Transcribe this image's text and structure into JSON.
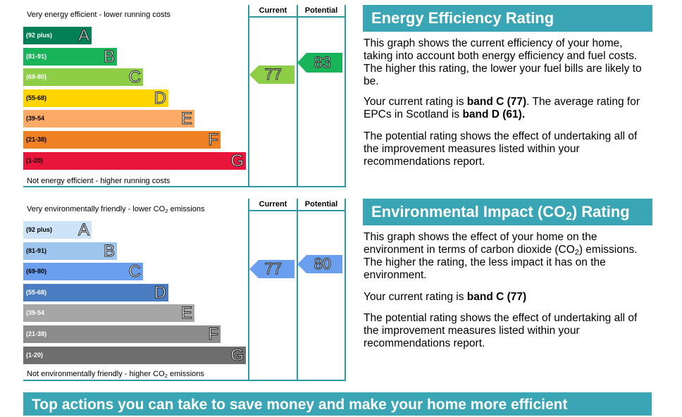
{
  "energy": {
    "top_label": "Very energy efficient - lower running costs",
    "bottom_label": "Not energy efficient - higher running costs",
    "current_header": "Current",
    "potential_header": "Potential",
    "bands": [
      {
        "range": "(92 plus)",
        "letter": "A",
        "color": "#008054"
      },
      {
        "range": "(81-91)",
        "letter": "B",
        "color": "#19b459"
      },
      {
        "range": "(69-80)",
        "letter": "C",
        "color": "#8dce46"
      },
      {
        "range": "(55-68)",
        "letter": "D",
        "color": "#ffd500"
      },
      {
        "range": "(39-54",
        "letter": "E",
        "color": "#fcaa65"
      },
      {
        "range": "(21-38)",
        "letter": "F",
        "color": "#ef8023"
      },
      {
        "range": "(1-20)",
        "letter": "G",
        "color": "#e9153b"
      }
    ],
    "current_value": "77",
    "current_color": "#8dce46",
    "potential_value": "83",
    "potential_color": "#19b459"
  },
  "environment": {
    "top_label_pre": "Very environmentally friendly - lower CO",
    "top_label_sub": "2",
    "top_label_post": " emissions",
    "bottom_label_pre": "Not environmentally friendly - higher CO",
    "bottom_label_sub": "2",
    "bottom_label_post": " emissions",
    "current_header": "Current",
    "potential_header": "Potential",
    "bands": [
      {
        "range": "(92 plus)",
        "letter": "A",
        "color": "#cde3f7"
      },
      {
        "range": "(81-91)",
        "letter": "B",
        "color": "#9ec5ee"
      },
      {
        "range": "(69-80)",
        "letter": "C",
        "color": "#6a9ff0"
      },
      {
        "range": "(55-68)",
        "letter": "D",
        "color": "#4a7cc2"
      },
      {
        "range": "(39-54",
        "letter": "E",
        "color": "#a6a6a6"
      },
      {
        "range": "(21-38)",
        "letter": "F",
        "color": "#8c8c8c"
      },
      {
        "range": "(1-20)",
        "letter": "G",
        "color": "#6e6e6e"
      }
    ],
    "current_value": "77",
    "current_color": "#6a9ff0",
    "potential_value": "80",
    "potential_color": "#6a9ff0"
  },
  "energy_text": {
    "heading": "Energy Efficiency Rating",
    "p1": "This graph shows the current efficiency of your home, taking into account both energy efficiency and fuel costs. The higher this rating, the lower your fuel bills are likely to be.",
    "p2_pre": "Your current rating is ",
    "p2_bold1": "band C (77)",
    "p2_mid": ". The average rating for EPCs in Scotland is ",
    "p2_bold2": "band D (61).",
    "p3": "The potential rating shows the effect of undertaking all of the improvement measures listed within your recommendations report."
  },
  "environment_text": {
    "heading_pre": "Environmental Impact (CO",
    "heading_sub": "2",
    "heading_post": ") Rating",
    "p1_pre": "This graph shows the effect of your home on the environment in terms of carbon dioxide (CO",
    "p1_sub": "2",
    "p1_post": ") emissions. The higher the rating, the less impact it has on the environment.",
    "p2_pre": "Your current rating is ",
    "p2_bold": "band C (77)",
    "p3": "The potential rating shows the effect of undertaking all of the improvement measures listed within your recommendations report."
  },
  "footer": {
    "banner": "Top actions you can take to save money and make your home more efficient"
  }
}
